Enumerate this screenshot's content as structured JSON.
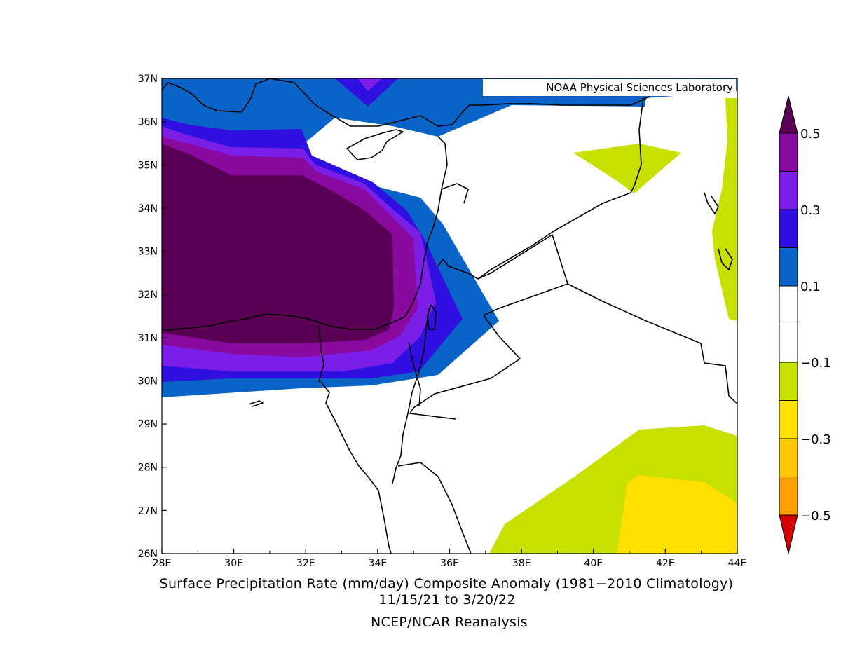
{
  "map": {
    "lon_ticks": [
      "28E",
      "30E",
      "32E",
      "34E",
      "36E",
      "38E",
      "40E",
      "42E",
      "44E"
    ],
    "lat_ticks": [
      "26N",
      "27N",
      "28N",
      "29N",
      "30N",
      "31N",
      "32N",
      "33N",
      "34N",
      "35N",
      "36N",
      "37N"
    ],
    "lon_range": [
      28,
      44
    ],
    "lat_range": [
      26,
      37
    ],
    "credit": "NOAA Physical Sciences Laboratory"
  },
  "colorbar": {
    "labels": [
      "0.5",
      "0.3",
      "0.1",
      "−0.1",
      "−0.3",
      "−0.5"
    ],
    "colors": [
      "#5a0054",
      "#8a0aa0",
      "#7a1ee8",
      "#3010e0",
      "#0a64c8",
      "#ffffff",
      "#ffffff",
      "#c8e000",
      "#ffe000",
      "#ffc800",
      "#ffa000",
      "#d20000"
    ]
  },
  "captions": {
    "title": "Surface Precipitation Rate (mm/day) Composite Anomaly (1981−2010 Climatology)",
    "dates": "11/15/21   to 3/20/22",
    "source": "NCEP/NCAR Reanalysis"
  }
}
